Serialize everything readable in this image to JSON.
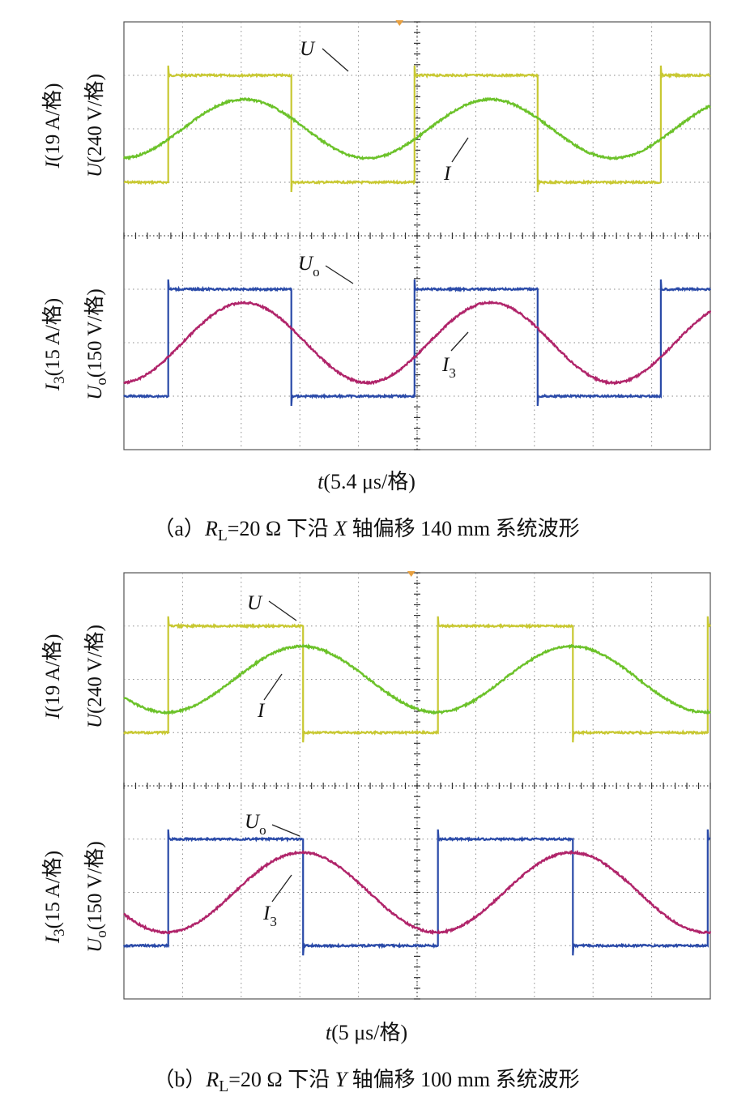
{
  "chart_data": [
    {
      "type": "line",
      "panel": "a",
      "caption": "（a）RL=20 Ω 下沿 X 轴偏移 140 mm 系统波形",
      "caption_parts": {
        "prefix": "（a）",
        "symbol": "R",
        "symbol_sub": "L",
        "suffix_before_axis": "=20 Ω 下沿 ",
        "axis": "X",
        "suffix": " 轴偏移 140 mm 系统波形"
      },
      "xlabel": "t(5.4 μs/格)",
      "xlabel_parts": {
        "symbol": "t",
        "unit": "(5.4 μs/格)"
      },
      "x_divisions": 10,
      "y_divisions": 8,
      "grid": true,
      "top_axes": {
        "ylabel_outer": {
          "symbol": "I",
          "unit": "(19 A/格)"
        },
        "ylabel_inner": {
          "symbol": "U",
          "unit": "(240 V/格)"
        },
        "series": [
          {
            "name": "U",
            "kind": "square",
            "color": "#c8c832",
            "period_div": 4.2,
            "high_div": 1.0,
            "low_div": -1.0,
            "phase_div": 0.75
          },
          {
            "name": "I",
            "kind": "sine",
            "color": "#6cc22a",
            "period_div": 4.2,
            "amplitude_div": 0.55,
            "phase_div": 1.0
          }
        ],
        "labels": [
          {
            "name": "U",
            "text": "U"
          },
          {
            "name": "I",
            "text": "I"
          }
        ]
      },
      "bottom_axes": {
        "ylabel_outer": {
          "symbol": "I",
          "sub": "3",
          "unit": "(15 A/格)"
        },
        "ylabel_inner": {
          "symbol": "U",
          "sub": "o",
          "unit": "(150 V/格)"
        },
        "series": [
          {
            "name": "Uo",
            "kind": "square",
            "color": "#2a4aa8",
            "period_div": 4.2,
            "high_div": 1.0,
            "low_div": -1.0,
            "phase_div": 0.75
          },
          {
            "name": "I3",
            "kind": "sine",
            "color": "#b0246a",
            "period_div": 4.2,
            "amplitude_div": 0.75,
            "phase_div": 1.0
          }
        ],
        "labels": [
          {
            "name": "Uo",
            "text": "U",
            "sub": "o"
          },
          {
            "name": "I3",
            "text": "I",
            "sub": "3"
          }
        ]
      }
    },
    {
      "type": "line",
      "panel": "b",
      "caption": "（b）RL=20 Ω 下沿 Y 轴偏移 100 mm 系统波形",
      "caption_parts": {
        "prefix": "（b）",
        "symbol": "R",
        "symbol_sub": "L",
        "suffix_before_axis": "=20 Ω 下沿 ",
        "axis": "Y",
        "suffix": " 轴偏移 100 mm 系统波形"
      },
      "xlabel": "t(5 μs/格)",
      "xlabel_parts": {
        "symbol": "t",
        "unit": "(5 μs/格)"
      },
      "x_divisions": 10,
      "y_divisions": 8,
      "grid": true,
      "top_axes": {
        "ylabel_outer": {
          "symbol": "I",
          "unit": "(19 A/格)"
        },
        "ylabel_inner": {
          "symbol": "U",
          "unit": "(240 V/格)"
        },
        "series": [
          {
            "name": "U",
            "kind": "square",
            "color": "#c8c832",
            "period_div": 4.6,
            "high_div": 1.0,
            "low_div": -1.0,
            "phase_div": 0.75
          },
          {
            "name": "I",
            "kind": "sine",
            "color": "#6cc22a",
            "period_div": 4.6,
            "amplitude_div": 0.62,
            "phase_div": 1.88
          }
        ],
        "labels": [
          {
            "name": "U",
            "text": "U"
          },
          {
            "name": "I",
            "text": "I"
          }
        ]
      },
      "bottom_axes": {
        "ylabel_outer": {
          "symbol": "I",
          "sub": "3",
          "unit": "(15 A/格)"
        },
        "ylabel_inner": {
          "symbol": "U",
          "sub": "o",
          "unit": "(150 V/格)"
        },
        "series": [
          {
            "name": "Uo",
            "kind": "square",
            "color": "#2a4aa8",
            "period_div": 4.6,
            "high_div": 1.0,
            "low_div": -1.0,
            "phase_div": 0.75
          },
          {
            "name": "I3",
            "kind": "sine",
            "color": "#b0246a",
            "period_div": 4.6,
            "amplitude_div": 0.75,
            "phase_div": 1.88
          }
        ],
        "labels": [
          {
            "name": "Uo",
            "text": "U",
            "sub": "o"
          },
          {
            "name": "I3",
            "text": "I",
            "sub": "3"
          }
        ]
      }
    }
  ]
}
